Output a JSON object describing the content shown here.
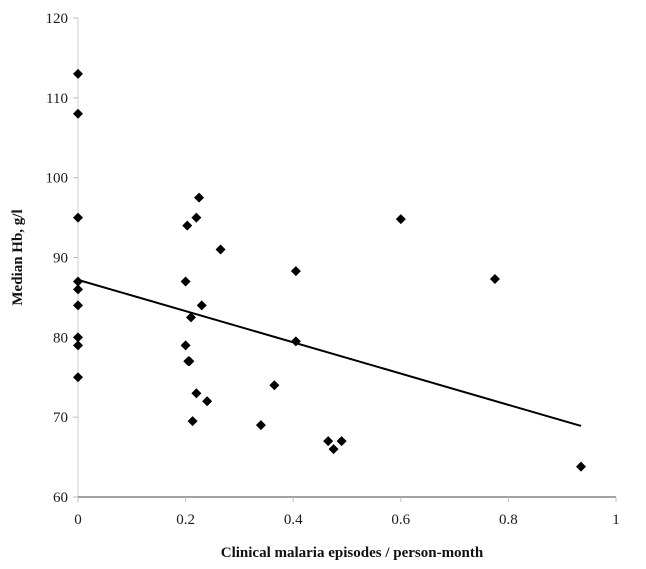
{
  "chart_data": {
    "type": "scatter",
    "title": "",
    "xlabel": "Clinical malaria episodes / person-month",
    "ylabel": "Median Hb, g/l",
    "xlim": [
      0,
      1
    ],
    "ylim": [
      60,
      120
    ],
    "xticks": [
      0,
      0.2,
      0.4,
      0.6,
      0.8,
      1
    ],
    "xtick_labels": [
      "0",
      "0.2",
      "0.4",
      "0.6",
      "0.8",
      "1"
    ],
    "yticks": [
      60,
      70,
      80,
      90,
      100,
      110,
      120
    ],
    "ytick_labels": [
      "60",
      "70",
      "80",
      "90",
      "100",
      "110",
      "120"
    ],
    "grid": false,
    "legend": "none",
    "marker": "diamond",
    "marker_color": "#000000",
    "series": [
      {
        "points": [
          [
            0,
            113
          ],
          [
            0,
            108
          ],
          [
            0,
            95
          ],
          [
            0,
            87
          ],
          [
            0,
            86
          ],
          [
            0,
            84
          ],
          [
            0,
            80
          ],
          [
            0,
            79
          ],
          [
            0,
            75
          ],
          [
            0.2,
            87
          ],
          [
            0.2,
            79
          ],
          [
            0.203,
            94
          ],
          [
            0.205,
            77
          ],
          [
            0.207,
            77
          ],
          [
            0.21,
            82.5
          ],
          [
            0.213,
            69.5
          ],
          [
            0.22,
            95
          ],
          [
            0.22,
            73
          ],
          [
            0.225,
            97.5
          ],
          [
            0.23,
            84
          ],
          [
            0.24,
            72
          ],
          [
            0.265,
            91
          ],
          [
            0.34,
            69
          ],
          [
            0.365,
            74
          ],
          [
            0.405,
            79.5
          ],
          [
            0.405,
            88.3
          ],
          [
            0.465,
            67
          ],
          [
            0.475,
            66
          ],
          [
            0.49,
            67
          ],
          [
            0.6,
            94.8
          ],
          [
            0.775,
            87.3
          ],
          [
            0.935,
            63.8
          ]
        ]
      }
    ],
    "trendline": {
      "x": [
        0,
        0.935
      ],
      "y": [
        87.2,
        68.9
      ],
      "color": "#000000"
    }
  }
}
